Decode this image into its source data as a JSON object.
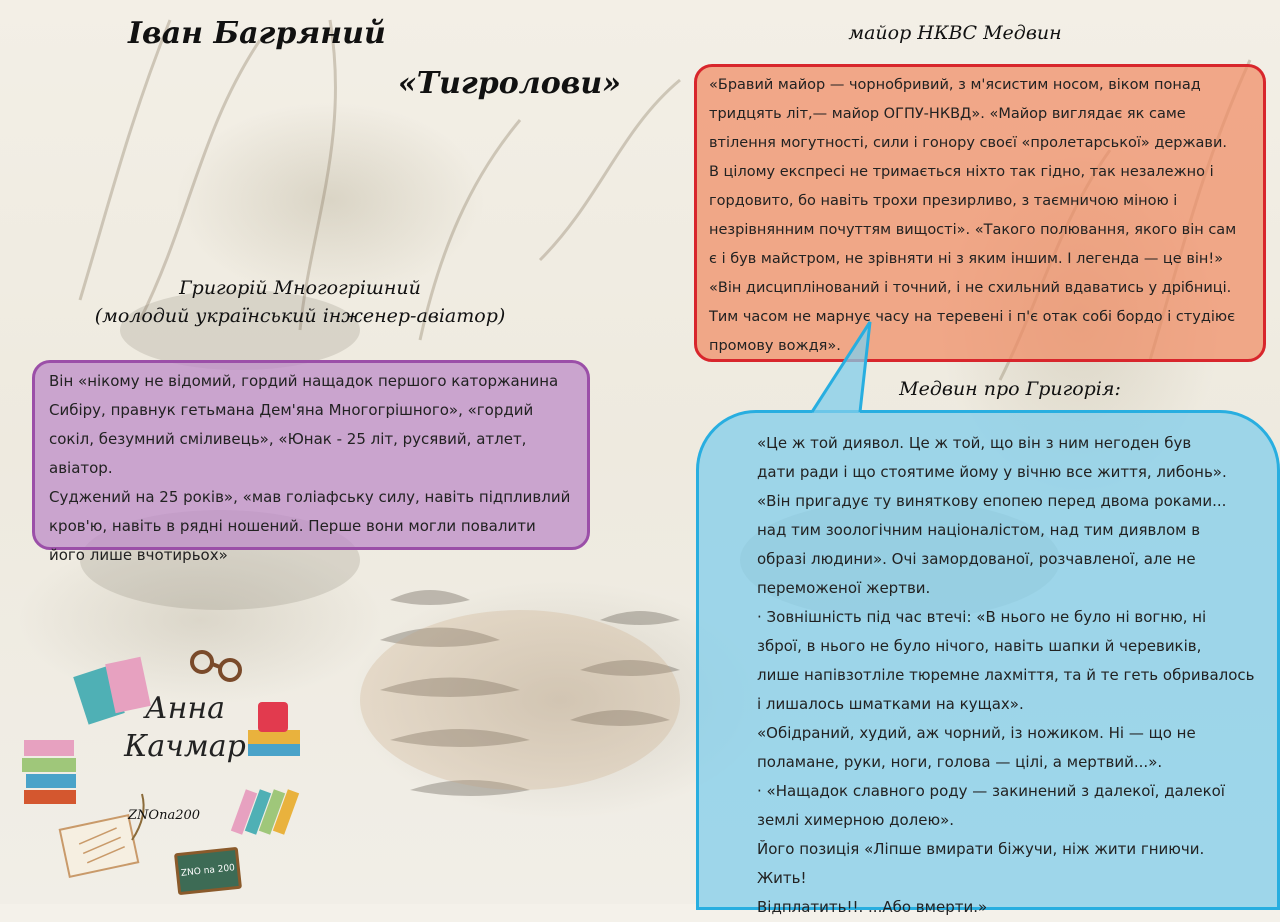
{
  "header": {
    "author": "Іван Багряний",
    "work": "«Тигролови»"
  },
  "major": {
    "heading": "майор НКВС Медвин",
    "lines": [
      "«Бравий майор — чорнобривий, з м'ясистим носом, віком понад",
      "тридцять літ,— майор ОГПУ-НКВД». «Майор виглядає як саме",
      "втілення могутності, сили і гонору своєї «пролетарської» держави.",
      "В цілому експресі не тримається ніхто так гідно, так незалежно і",
      "гордовито, бо навіть трохи презирливо, з таємничою міною і",
      "незрівнянним почуттям вищості». «Такого полювання, якого він сам",
      "є і був майстром, не зрівняти ні з яким іншим. І легенда — це він!»",
      "«Він дисциплінований і точний, і не схильний вдаватись у дрібниці.",
      "Тим часом не марнує часу на теревені і п'є отак собі бордо і студіює",
      "промову вождя»."
    ]
  },
  "grigoriy": {
    "heading_name": "Григорій Многогрішний",
    "heading_role": "(молодий український інженер-авіатор)",
    "lines": [
      "Він «нікому не відомий, гордий нащадок першого каторжанина",
      "Сибіру, правнук гетьмана Дем'яна Многогрішного», «гордий",
      "сокіл, безумний сміливець», «Юнак - 25 літ, русявий, атлет, авіатор.",
      "Суджений на 25 років», «мав голіафську силу, навіть підпливлий",
      "кров'ю, навіть в рядні ношений. Перше вони могли повалити",
      "його лише вчотирьох»"
    ]
  },
  "medvyn_about": {
    "heading": "Медвин про Григорія:",
    "lines": [
      "«Це ж той диявол. Це ж той, що він з ним негоден був",
      "дати ради і що стоятиме йому у вічню все життя, либонь».",
      "«Він пригадує ту виняткову епопею перед двома роками...",
      "над тим зоологічним націоналістом, над тим диявлом в",
      "образі людини». Очі замордованої, розчавленої, але не",
      "переможеної жертви.",
      "· Зовнішність під час втечі: «В нього не було ні вогню, ні",
      "зброї, в нього не було нічого, навіть шапки й черевиків,",
      "лише напівзотліле тюремне лахміття, та й те геть обривалось",
      "і лишалось шматками на кущах».",
      "«Обідраний, худий, аж чорний, із ножиком. Ні — що не",
      "поламане, руки, ноги, голова — цілі, а мертвий...».",
      "· «Нащадок славного роду — закинений з далекої, далекої",
      "землі химерною долею».",
      "Його позиція «Ліпше вмирати біжучи, ніж жити гниючи. Жить!",
      "Відплатить!!. ...Або вмерти.»"
    ]
  },
  "branding": {
    "signature_line1": "Анна",
    "signature_line2": "Качмар",
    "brand": "ZNOna200",
    "sign_text": "ZNO na 200"
  },
  "colors": {
    "major_border": "#d8262c",
    "major_fill": "#f08c64",
    "grigoriy_border": "#9b4fa8",
    "grigoriy_fill": "#be8cc8",
    "medvyn_border": "#28aee0",
    "medvyn_fill": "#82cdeb"
  }
}
